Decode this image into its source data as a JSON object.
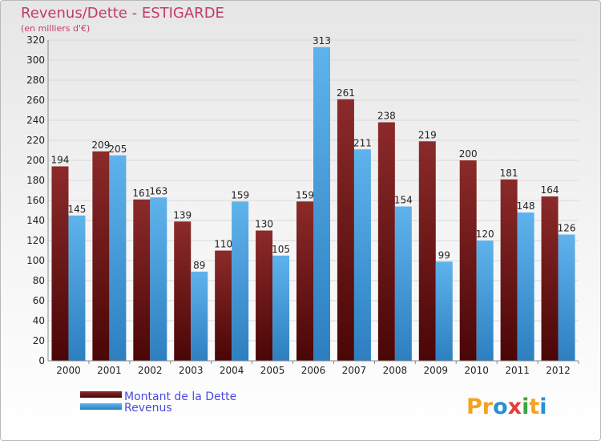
{
  "chart_data": {
    "type": "bar",
    "title": "Revenus/Dette - ESTIGARDE",
    "subtitle": "(en milliers d'€)",
    "categories": [
      "2000",
      "2001",
      "2002",
      "2003",
      "2004",
      "2005",
      "2006",
      "2007",
      "2008",
      "2009",
      "2010",
      "2011",
      "2012"
    ],
    "series": [
      {
        "name": "Montant de la Dette",
        "color": "#7a1c1c",
        "values": [
          194,
          209,
          161,
          139,
          110,
          130,
          159,
          261,
          238,
          219,
          200,
          181,
          164
        ]
      },
      {
        "name": "Revenus",
        "color": "#4da3e0",
        "values": [
          145,
          205,
          163,
          89,
          159,
          105,
          313,
          211,
          154,
          99,
          120,
          148,
          126
        ]
      }
    ],
    "ylim": [
      0,
      320
    ],
    "yticks": [
      0,
      20,
      40,
      60,
      80,
      100,
      120,
      140,
      160,
      180,
      200,
      220,
      240,
      260,
      280,
      300,
      320
    ],
    "grid": true,
    "legend_position": "bottom-left"
  },
  "brand": {
    "p": "Pr",
    "o": "o",
    "x": "x",
    "i": "i",
    "t": "t",
    "i2": "i"
  }
}
